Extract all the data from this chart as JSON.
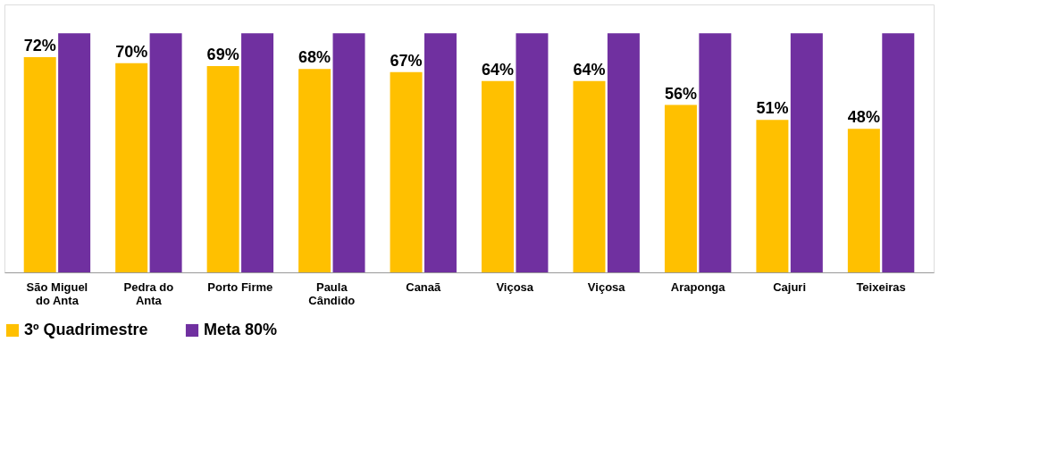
{
  "chart_data": {
    "type": "bar",
    "categories": [
      "São Miguel do Anta",
      "Pedra do Anta",
      "Porto Firme",
      "Paula Cândido",
      "Canaã",
      "Viçosa",
      "Viçosa",
      "Araponga",
      "Cajuri",
      "Teixeiras"
    ],
    "series": [
      {
        "name": "3º Quadrimestre",
        "color": "#ffc000",
        "values": [
          72,
          70,
          69,
          68,
          67,
          64,
          64,
          56,
          51,
          48
        ],
        "value_labels": [
          "72%",
          "70%",
          "69%",
          "68%",
          "67%",
          "64%",
          "64%",
          "56%",
          "51%",
          "48%"
        ]
      },
      {
        "name": "Meta 80%",
        "color": "#7030a0",
        "values": [
          80,
          80,
          80,
          80,
          80,
          80,
          80,
          80,
          80,
          80
        ]
      }
    ],
    "legend": "bottom",
    "grid": false
  }
}
